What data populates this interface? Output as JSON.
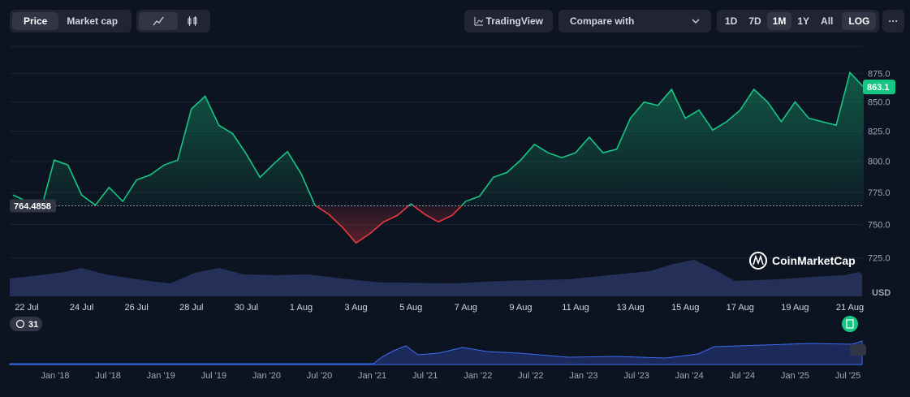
{
  "toolbar": {
    "price": "Price",
    "market_cap": "Market cap",
    "tradingview": "TradingView",
    "compare": "Compare with",
    "ranges": [
      "1D",
      "7D",
      "1M",
      "1Y",
      "All"
    ],
    "log": "LOG",
    "more": "···"
  },
  "history_badge": "31",
  "watermark": "CoinMarketCap",
  "navigator_labels": [
    "Jan '18",
    "Jul '18",
    "Jan '19",
    "Jul '19",
    "Jan '20",
    "Jul '20",
    "Jan '21",
    "Jul '21",
    "Jan '22",
    "Jul '22",
    "Jan '23",
    "Jul '23",
    "Jan '24",
    "Jul '24",
    "Jan '25",
    "Jul '25"
  ],
  "chart_data": {
    "type": "line",
    "ylabel": "USD",
    "log_scale": true,
    "grid": true,
    "color": "#16c784",
    "below_color": "#ea3943",
    "baseline": 764.4858,
    "categories": [
      null,
      "22 Jul",
      null,
      null,
      null,
      "24 Jul",
      null,
      null,
      null,
      "26 Jul",
      null,
      null,
      null,
      "28 Jul",
      null,
      null,
      null,
      "30 Jul",
      null,
      null,
      null,
      "1 Aug",
      null,
      null,
      null,
      "3 Aug",
      null,
      null,
      null,
      "5 Aug",
      null,
      null,
      null,
      "7 Aug",
      null,
      null,
      null,
      "9 Aug",
      null,
      null,
      null,
      "11 Aug",
      null,
      null,
      null,
      "13 Aug",
      null,
      null,
      null,
      "15 Aug",
      null,
      null,
      null,
      "17 Aug",
      null,
      null,
      null,
      "19 Aug",
      null,
      null,
      null,
      "21 Aug",
      null
    ],
    "values": [
      773,
      768,
      760,
      801,
      797,
      773,
      765,
      779,
      768,
      785,
      789,
      797,
      801,
      844,
      855,
      830,
      823,
      806,
      787,
      798,
      808,
      790,
      765,
      758,
      748,
      736,
      743,
      752,
      757,
      766,
      758,
      752,
      757,
      768,
      772,
      787,
      791,
      801,
      814,
      807,
      803,
      807,
      820,
      807,
      810,
      836,
      850,
      847,
      861,
      836,
      843,
      826,
      833,
      843,
      861,
      850,
      833,
      850,
      836,
      833,
      830,
      876,
      863.1
    ],
    "ylim": [
      697,
      899
    ],
    "yticks": [
      {
        "value": 725,
        "label": "725.0"
      },
      {
        "value": 750,
        "label": "750.0"
      },
      {
        "value": 775,
        "label": "775.0"
      },
      {
        "value": 800,
        "label": "800.0"
      },
      {
        "value": 825,
        "label": "825.0"
      },
      {
        "value": 850,
        "label": "850.0"
      },
      {
        "value": 875,
        "label": "875.0"
      }
    ]
  }
}
